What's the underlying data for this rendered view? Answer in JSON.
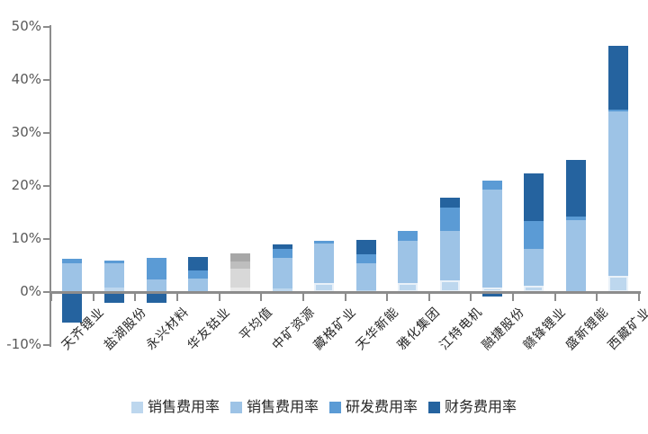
{
  "chart_data": {
    "type": "bar",
    "stacked": true,
    "orientation": "vertical",
    "title": "",
    "xlabel": "",
    "ylabel": "",
    "ylim": [
      -10,
      50
    ],
    "ytick_step": 10,
    "ytick_labels": [
      "50%",
      "40%",
      "30%",
      "20%",
      "10%",
      "0%",
      "-10%"
    ],
    "grid": false,
    "legend_position": "bottom",
    "x_label_rotation_deg": 45,
    "axis_color": "#8c8c8c",
    "categories": [
      "天齐锂业",
      "盐湖股份",
      "永兴材料",
      "华友钴业",
      "平均值",
      "中矿资源",
      "藏格矿业",
      "天华新能",
      "雅化集团",
      "江特电机",
      "融捷股份",
      "赣锋锂业",
      "盛新锂能",
      "西藏矿业"
    ],
    "series": [
      {
        "name": "销售费用率",
        "color": "#bdd7ee",
        "values": [
          0.2,
          0.8,
          0.2,
          0.2,
          0.9,
          0.6,
          1.7,
          0.4,
          1.7,
          2.2,
          0.9,
          1.2,
          0.2,
          3.1
        ]
      },
      {
        "name": "销售费用率",
        "color": "#9dc3e6",
        "values": [
          5.3,
          4.6,
          2.1,
          2.4,
          3.5,
          5.9,
          7.5,
          5.0,
          8.0,
          9.4,
          18.4,
          7.0,
          13.4,
          31.0
        ]
      },
      {
        "name": "研发费用率",
        "color": "#5b9bd5",
        "values": [
          0.7,
          0.5,
          4.1,
          1.4,
          1.3,
          1.6,
          0.5,
          1.8,
          1.9,
          4.3,
          1.7,
          5.2,
          0.7,
          0.3
        ]
      },
      {
        "name": "财务费用率",
        "color": "#25639f",
        "values": [
          -5.6,
          -1.8,
          -1.8,
          2.6,
          1.6,
          0.9,
          0.0,
          2.6,
          0.0,
          1.9,
          -0.6,
          9.0,
          10.6,
          12.0
        ]
      }
    ],
    "average_category": "平均值",
    "average_colors": [
      "#eaeaea",
      "#d8d8d8",
      "#bebebe",
      "#a7a7a7"
    ]
  }
}
